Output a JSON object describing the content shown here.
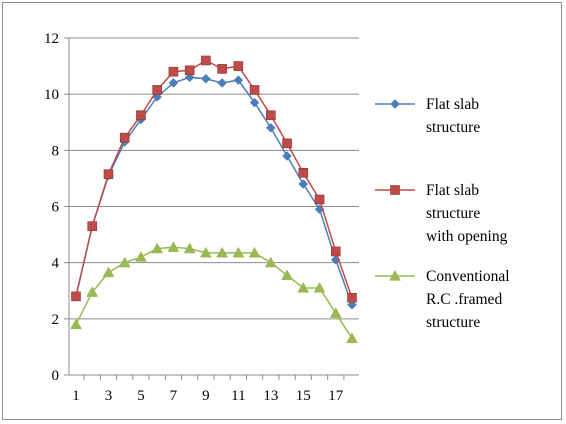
{
  "chart_data": {
    "type": "line",
    "title": "",
    "xlabel": "",
    "ylabel": "",
    "x": [
      1,
      2,
      3,
      4,
      5,
      6,
      7,
      8,
      9,
      10,
      11,
      12,
      13,
      14,
      15,
      16,
      17,
      18
    ],
    "x_tick_labels": [
      "1",
      "3",
      "5",
      "7",
      "9",
      "11",
      "13",
      "15",
      "17"
    ],
    "y_tick_labels": [
      "0",
      "2",
      "4",
      "6",
      "8",
      "10",
      "12"
    ],
    "ylim": [
      0,
      12
    ],
    "grid": "horizontal",
    "legend_position": "right",
    "series": [
      {
        "name_lines": [
          "Flat slab",
          "structure"
        ],
        "marker": "diamond",
        "color": "#4a7ebb",
        "values": [
          2.8,
          5.3,
          7.1,
          8.3,
          9.1,
          9.9,
          10.4,
          10.6,
          10.55,
          10.4,
          10.5,
          9.7,
          8.8,
          7.8,
          6.8,
          5.9,
          4.1,
          2.5
        ]
      },
      {
        "name_lines": [
          "Flat slab",
          "structure",
          "with opening"
        ],
        "marker": "square",
        "color": "#be4b48",
        "values": [
          2.8,
          5.3,
          7.15,
          8.45,
          9.25,
          10.15,
          10.8,
          10.85,
          11.2,
          10.9,
          11.0,
          10.15,
          9.25,
          8.25,
          7.2,
          6.25,
          4.4,
          2.75
        ]
      },
      {
        "name_lines": [
          "Conventional",
          "R.C .framed",
          "structure"
        ],
        "marker": "triangle",
        "color": "#98b954",
        "values": [
          1.8,
          2.95,
          3.65,
          4.0,
          4.2,
          4.5,
          4.55,
          4.5,
          4.35,
          4.35,
          4.35,
          4.35,
          4.0,
          3.55,
          3.1,
          3.1,
          2.2,
          1.3
        ]
      }
    ]
  }
}
